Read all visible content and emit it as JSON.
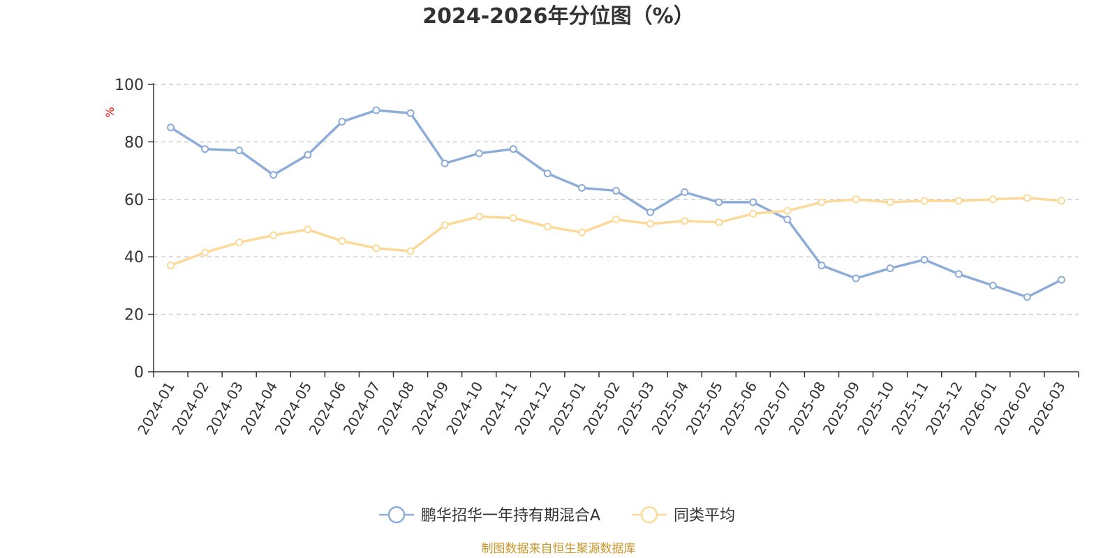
{
  "chart_data": {
    "type": "line",
    "title": "2024-2026年分位图（%）",
    "ylabel": "%",
    "ylim": [
      0,
      100
    ],
    "yticks": [
      0,
      20,
      40,
      60,
      80,
      100
    ],
    "grid": true,
    "legend_position": "bottom",
    "categories": [
      "2024-01",
      "2024-02",
      "2024-03",
      "2024-04",
      "2024-05",
      "2024-06",
      "2024-07",
      "2024-08",
      "2024-09",
      "2024-10",
      "2024-11",
      "2024-12",
      "2025-01",
      "2025-02",
      "2025-03",
      "2025-04",
      "2025-05",
      "2025-06",
      "2025-07",
      "2025-08",
      "2025-09",
      "2025-10",
      "2025-11",
      "2025-12",
      "2026-01",
      "2026-02",
      "2026-03"
    ],
    "series": [
      {
        "name": "鹏华招华一年持有期混合A",
        "color": "#8eacd8",
        "values": [
          85,
          77.5,
          77,
          68.5,
          75.5,
          87,
          91,
          90,
          72.5,
          76,
          77.5,
          69,
          64,
          63,
          55.5,
          62.5,
          59,
          59,
          53,
          37,
          32.5,
          36,
          39,
          34,
          30,
          26,
          32
        ]
      },
      {
        "name": "同类平均",
        "color": "#fcd998",
        "values": [
          37,
          41.5,
          45,
          47.5,
          49.5,
          45.5,
          43,
          42,
          51,
          54,
          53.5,
          50.5,
          48.5,
          53,
          51.5,
          52.5,
          52,
          55,
          56,
          59,
          60,
          59,
          59.5,
          59.5,
          60,
          60.5,
          59.5
        ]
      }
    ]
  },
  "source_text": "制图数据来自恒生聚源数据库",
  "colors": {
    "axis": "#333333",
    "grid": "#cccccc",
    "ylabel": "#ff0000",
    "source": "#c8962a"
  }
}
